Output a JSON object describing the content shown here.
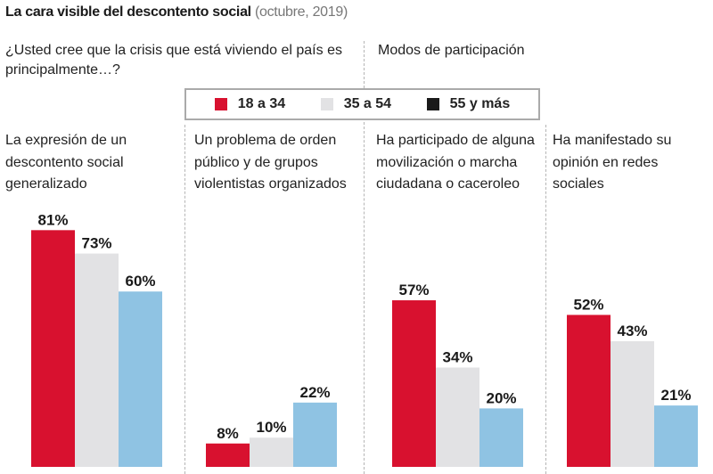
{
  "header": {
    "title": "La cara visible del descontento social",
    "subtitle": "(octubre, 2019)"
  },
  "sections": {
    "left_question": "¿Usted cree que la crisis que está viviendo el país es principalmente…?",
    "right_question": "Modos de participación"
  },
  "colors": {
    "18 a 34": "#d8112f",
    "35 a 54": "#e2e2e4",
    "55 y más": "#8fc3e3"
  },
  "chart_data": {
    "type": "bar",
    "title": "La cara visible del descontento social",
    "subtitle": "(octubre, 2019)",
    "series_names": [
      "18 a 34",
      "35 a 54",
      "55 y más"
    ],
    "legend_position": "top-center",
    "unit": "%",
    "groups": [
      {
        "label": "La expresión de un descontento social generalizado",
        "values": [
          81,
          73,
          60
        ]
      },
      {
        "label": "Un problema de orden público y de grupos violentistas organizados",
        "values": [
          8,
          10,
          22
        ]
      },
      {
        "label": "Ha participado de alguna movilización o marcha ciudadana o caceroleo",
        "values": [
          57,
          34,
          20
        ]
      },
      {
        "label": "Ha manifestado su opinión en redes sociales",
        "values": [
          52,
          43,
          21
        ]
      }
    ],
    "ylim": [
      0,
      100
    ],
    "grid": false
  }
}
